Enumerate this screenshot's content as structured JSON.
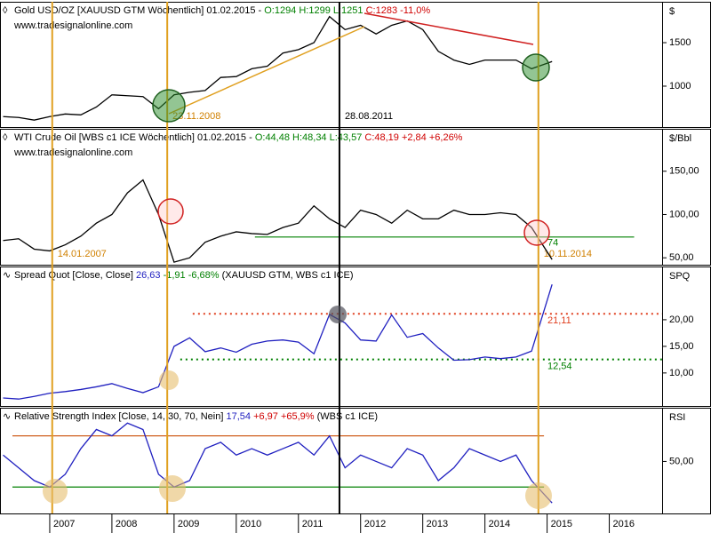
{
  "chart_data": [
    {
      "type": "line",
      "unit": "$",
      "source": "www.tradesignalonline.com",
      "title_parts": [
        {
          "text": "Gold USD/OZ [XAUUSD GTM  Wöchentlich] 01.02.2015 - ",
          "color": "#000000"
        },
        {
          "text": "O:1294 H:1299 L:1251 ",
          "color": "#008000"
        },
        {
          "text": "C:1283 -11,0%",
          "color": "#d00000"
        }
      ],
      "xlim": [
        2006.2,
        2016.85
      ],
      "ylim": [
        530,
        1970
      ],
      "yticks": [
        1000,
        1500
      ],
      "series": [
        {
          "color": "#000000",
          "x": [
            2006.25,
            2006.5,
            2006.75,
            2007,
            2007.25,
            2007.5,
            2007.75,
            2008,
            2008.25,
            2008.5,
            2008.75,
            2009,
            2009.25,
            2009.5,
            2009.75,
            2010,
            2010.25,
            2010.5,
            2010.75,
            2011,
            2011.25,
            2011.5,
            2011.75,
            2012,
            2012.25,
            2012.5,
            2012.75,
            2013,
            2013.25,
            2013.5,
            2013.75,
            2014,
            2014.25,
            2014.5,
            2014.75,
            2015.08
          ],
          "values": [
            650,
            640,
            610,
            650,
            680,
            670,
            760,
            900,
            890,
            880,
            740,
            900,
            930,
            950,
            1100,
            1110,
            1200,
            1230,
            1380,
            1420,
            1500,
            1800,
            1650,
            1700,
            1600,
            1700,
            1750,
            1650,
            1400,
            1300,
            1250,
            1300,
            1300,
            1300,
            1200,
            1283
          ]
        }
      ],
      "hlines": [],
      "date_labels": [
        {
          "text": "23.11.2008",
          "x": 2008.89,
          "color": "#d08000"
        },
        {
          "text": "28.08.2011",
          "x": 2011.66,
          "color": "#000000"
        }
      ]
    },
    {
      "type": "line",
      "unit": "$/Bbl",
      "source": "www.tradesignalonline.com",
      "title_parts": [
        {
          "text": "WTI Crude Oil [WBS c1 ICE  Wöchentlich] 01.02.2015 - ",
          "color": "#000000"
        },
        {
          "text": "O:44,48 H:48,34 L:43,57 ",
          "color": "#008000"
        },
        {
          "text": "C:48,19 +2,84 +6,26%",
          "color": "#d00000"
        }
      ],
      "xlim": [
        2006.2,
        2016.85
      ],
      "ylim": [
        42,
        199
      ],
      "yticks": [
        {
          "value": 50,
          "label": "50,00"
        },
        {
          "value": 100,
          "label": "100,00"
        },
        {
          "value": 150,
          "label": "150,00"
        }
      ],
      "series": [
        {
          "color": "#000000",
          "x": [
            2006.25,
            2006.5,
            2006.75,
            2007,
            2007.25,
            2007.5,
            2007.75,
            2008,
            2008.25,
            2008.5,
            2008.75,
            2009,
            2009.25,
            2009.5,
            2009.75,
            2010,
            2010.25,
            2010.5,
            2010.75,
            2011,
            2011.25,
            2011.5,
            2011.75,
            2012,
            2012.25,
            2012.5,
            2012.75,
            2013,
            2013.25,
            2013.5,
            2013.75,
            2014,
            2014.25,
            2014.5,
            2014.75,
            2015.08
          ],
          "values": [
            70,
            72,
            60,
            58,
            65,
            75,
            90,
            100,
            125,
            140,
            100,
            45,
            50,
            68,
            75,
            80,
            78,
            77,
            85,
            90,
            110,
            95,
            85,
            105,
            100,
            90,
            105,
            95,
            95,
            105,
            100,
            100,
            102,
            100,
            85,
            48
          ]
        }
      ],
      "hlines": [
        {
          "value": 74,
          "color": "#008000",
          "from": 2010.3,
          "to": 2016.4,
          "dash": false
        }
      ],
      "date_labels": [
        {
          "text": "14.01.2007",
          "x": 2007.04,
          "color": "#d08000"
        },
        {
          "text": "10.11.2014",
          "x": 2014.86,
          "color": "#d08000"
        }
      ]
    },
    {
      "type": "line",
      "unit": "SPQ",
      "title_parts": [
        {
          "text": "Spread Quot [Close, Close] ",
          "color": "#000000"
        },
        {
          "text": "26,63 ",
          "color": "#2020c0"
        },
        {
          "text": "-1,91 -6,68% ",
          "color": "#008000"
        },
        {
          "text": "(XAUUSD GTM, WBS c1 ICE)",
          "color": "#000000"
        }
      ],
      "xlim": [
        2006.2,
        2016.85
      ],
      "ylim": [
        3.8,
        30
      ],
      "yticks": [
        {
          "value": 10,
          "label": "10,00"
        },
        {
          "value": 15,
          "label": "15,00"
        },
        {
          "value": 20,
          "label": "20,00"
        }
      ],
      "series": [
        {
          "color": "#2020c0",
          "x": [
            2006.25,
            2006.5,
            2006.75,
            2007,
            2007.25,
            2007.5,
            2007.75,
            2008,
            2008.25,
            2008.5,
            2008.75,
            2009,
            2009.25,
            2009.5,
            2009.75,
            2010,
            2010.25,
            2010.5,
            2010.75,
            2011,
            2011.25,
            2011.5,
            2011.75,
            2012,
            2012.25,
            2012.5,
            2012.75,
            2013,
            2013.25,
            2013.5,
            2013.75,
            2014,
            2014.25,
            2014.5,
            2014.75,
            2015.08
          ],
          "values": [
            5.3,
            5.1,
            5.6,
            6.2,
            6.5,
            6.9,
            7.4,
            8,
            7.1,
            6.3,
            7.4,
            15,
            16.6,
            14,
            14.7,
            13.9,
            15.4,
            16,
            16.2,
            15.8,
            13.6,
            21,
            19.4,
            16.2,
            16,
            20.9,
            16.7,
            17.4,
            14.7,
            12.4,
            12.5,
            13,
            12.7,
            13,
            14.1,
            26.63
          ]
        }
      ],
      "hlines": [
        {
          "value": 21.11,
          "label": "21,11",
          "color": "#e04020",
          "from": 2009.3,
          "to": 2016.85,
          "dash": true
        },
        {
          "value": 12.54,
          "label": "12,54",
          "color": "#008000",
          "from": 2009.1,
          "to": 2016.85,
          "dash": true
        }
      ],
      "date_labels": []
    },
    {
      "type": "line",
      "unit": "RSI",
      "title_parts": [
        {
          "text": "Relative Strength Index [Close, 14, 30, 70, Nein] ",
          "color": "#000000"
        },
        {
          "text": "17,54 ",
          "color": "#2020c0"
        },
        {
          "text": "+6,97 +65,9% ",
          "color": "#d00000"
        },
        {
          "text": "(WBS c1 ICE)",
          "color": "#000000"
        }
      ],
      "xlim": [
        2006.2,
        2016.85
      ],
      "ylim": [
        9.3,
        92
      ],
      "yticks": [
        {
          "value": 50,
          "label": "50,00"
        }
      ],
      "xticks": [
        2007,
        2008,
        2009,
        2010,
        2011,
        2012,
        2013,
        2014,
        2015,
        2016
      ],
      "series": [
        {
          "color": "#2020c0",
          "x": [
            2006.25,
            2006.5,
            2006.75,
            2007,
            2007.25,
            2007.5,
            2007.75,
            2008,
            2008.25,
            2008.5,
            2008.75,
            2009,
            2009.25,
            2009.5,
            2009.75,
            2010,
            2010.25,
            2010.5,
            2010.75,
            2011,
            2011.25,
            2011.5,
            2011.75,
            2012,
            2012.25,
            2012.5,
            2012.75,
            2013,
            2013.25,
            2013.5,
            2013.75,
            2014,
            2014.25,
            2014.5,
            2014.75,
            2015.08
          ],
          "values": [
            55,
            45,
            35,
            30,
            40,
            60,
            75,
            70,
            80,
            75,
            40,
            30,
            35,
            60,
            65,
            55,
            60,
            55,
            60,
            65,
            55,
            70,
            45,
            55,
            50,
            45,
            60,
            55,
            35,
            45,
            60,
            55,
            50,
            55,
            35,
            17.54
          ]
        }
      ],
      "hlines": [
        {
          "value": 70,
          "color": "#d06020",
          "from": 2006.4,
          "to": 2014.95,
          "dash": false
        },
        {
          "value": 30,
          "color": "#008000",
          "from": 2006.4,
          "to": 2014.95,
          "dash": false
        }
      ],
      "date_labels": []
    }
  ],
  "date_lines": [
    {
      "x": 2007.04,
      "color": "#e0a020"
    },
    {
      "x": 2008.89,
      "color": "#e0a020"
    },
    {
      "x": 2011.66,
      "color": "#000000"
    },
    {
      "x": 2014.86,
      "color": "#e0a020"
    }
  ]
}
